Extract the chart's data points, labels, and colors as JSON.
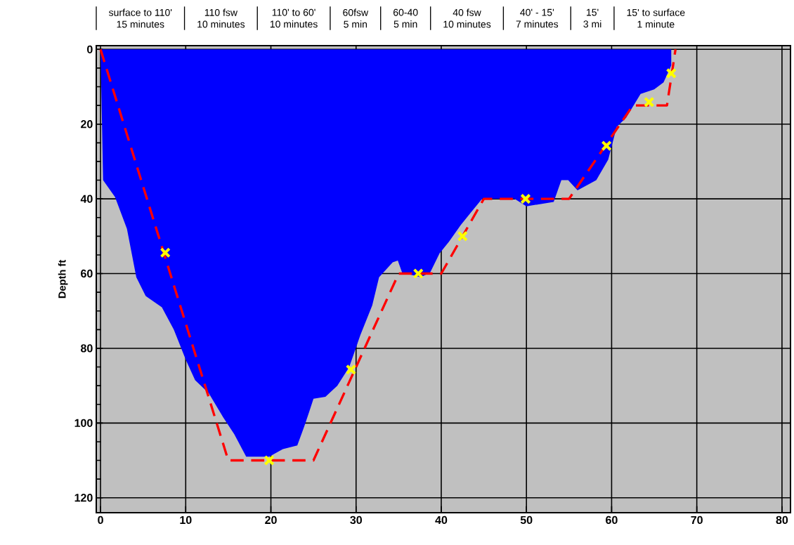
{
  "chart_data": {
    "type": "area",
    "ylabel": "Depth ft",
    "annotations": [
      "surface to 110'",
      "15 minutes",
      "110 fsw",
      "10 minutes",
      "110' to 60'",
      "10 minutes",
      "60fsw",
      "5 min",
      "60-40",
      "5 min",
      "40 fsw",
      "10 minutes",
      "40' - 15'",
      "7 minutes",
      "15'",
      "3 mi",
      "15' to surface",
      "1 minute"
    ],
    "xlim": [
      -0.5,
      81
    ],
    "ylim": [
      124,
      -1
    ],
    "xticks": [
      0,
      10,
      20,
      30,
      40,
      50,
      60,
      70,
      80
    ],
    "yticks": [
      0,
      20,
      40,
      60,
      80,
      100,
      120
    ],
    "grid": true,
    "series": [
      {
        "color": "#0000ff",
        "x": [
          0,
          0.3,
          1.7,
          3.1,
          4.2,
          5.3,
          7.2,
          8.6,
          10,
          11.1,
          12.7,
          14.4,
          15.7,
          17.1,
          19.8,
          21.4,
          23.1,
          23.9,
          24.5,
          25,
          26.4,
          27.8,
          29.2,
          30.5,
          31.9,
          32.7,
          34.3,
          34.9,
          35.4,
          37.6,
          38.7,
          39.8,
          40.9,
          42.3,
          43.6,
          44.8,
          48.6,
          50,
          53.2,
          54.1,
          54.9,
          56,
          58.2,
          59.6,
          60.6,
          61.7,
          63.4,
          65,
          66.1,
          67,
          67
        ],
        "values": [
          0,
          35,
          39.5,
          48,
          61,
          66,
          69,
          75,
          83,
          88.5,
          92,
          98.5,
          103,
          109,
          109,
          107,
          106,
          101,
          97,
          93.5,
          93,
          90,
          85,
          76.5,
          68.5,
          61,
          57,
          56.5,
          59.7,
          61,
          59.7,
          54.6,
          51.5,
          47,
          43.3,
          40,
          40,
          42,
          40.8,
          35,
          35,
          37.7,
          35,
          29.5,
          20.7,
          18.3,
          11.9,
          10.7,
          8.8,
          4.3,
          0
        ]
      },
      {
        "type": "line",
        "color": "#ff0000",
        "line_style": "dashed",
        "x": [
          0,
          15,
          25,
          35,
          40,
          45,
          55,
          62.5,
          66.5,
          67.5
        ],
        "values": [
          0,
          110,
          110,
          60,
          60,
          40,
          40,
          15,
          15,
          0
        ]
      },
      {
        "type": "scatter",
        "color": "#ffff00",
        "marker": "cross",
        "x": [
          7.6,
          19.8,
          29.4,
          37.3,
          42.5,
          49.9,
          59.4,
          64.4,
          67
        ],
        "values": [
          54.4,
          110,
          85.7,
          60,
          50,
          40,
          25.8,
          14.1,
          6.4
        ]
      }
    ]
  }
}
